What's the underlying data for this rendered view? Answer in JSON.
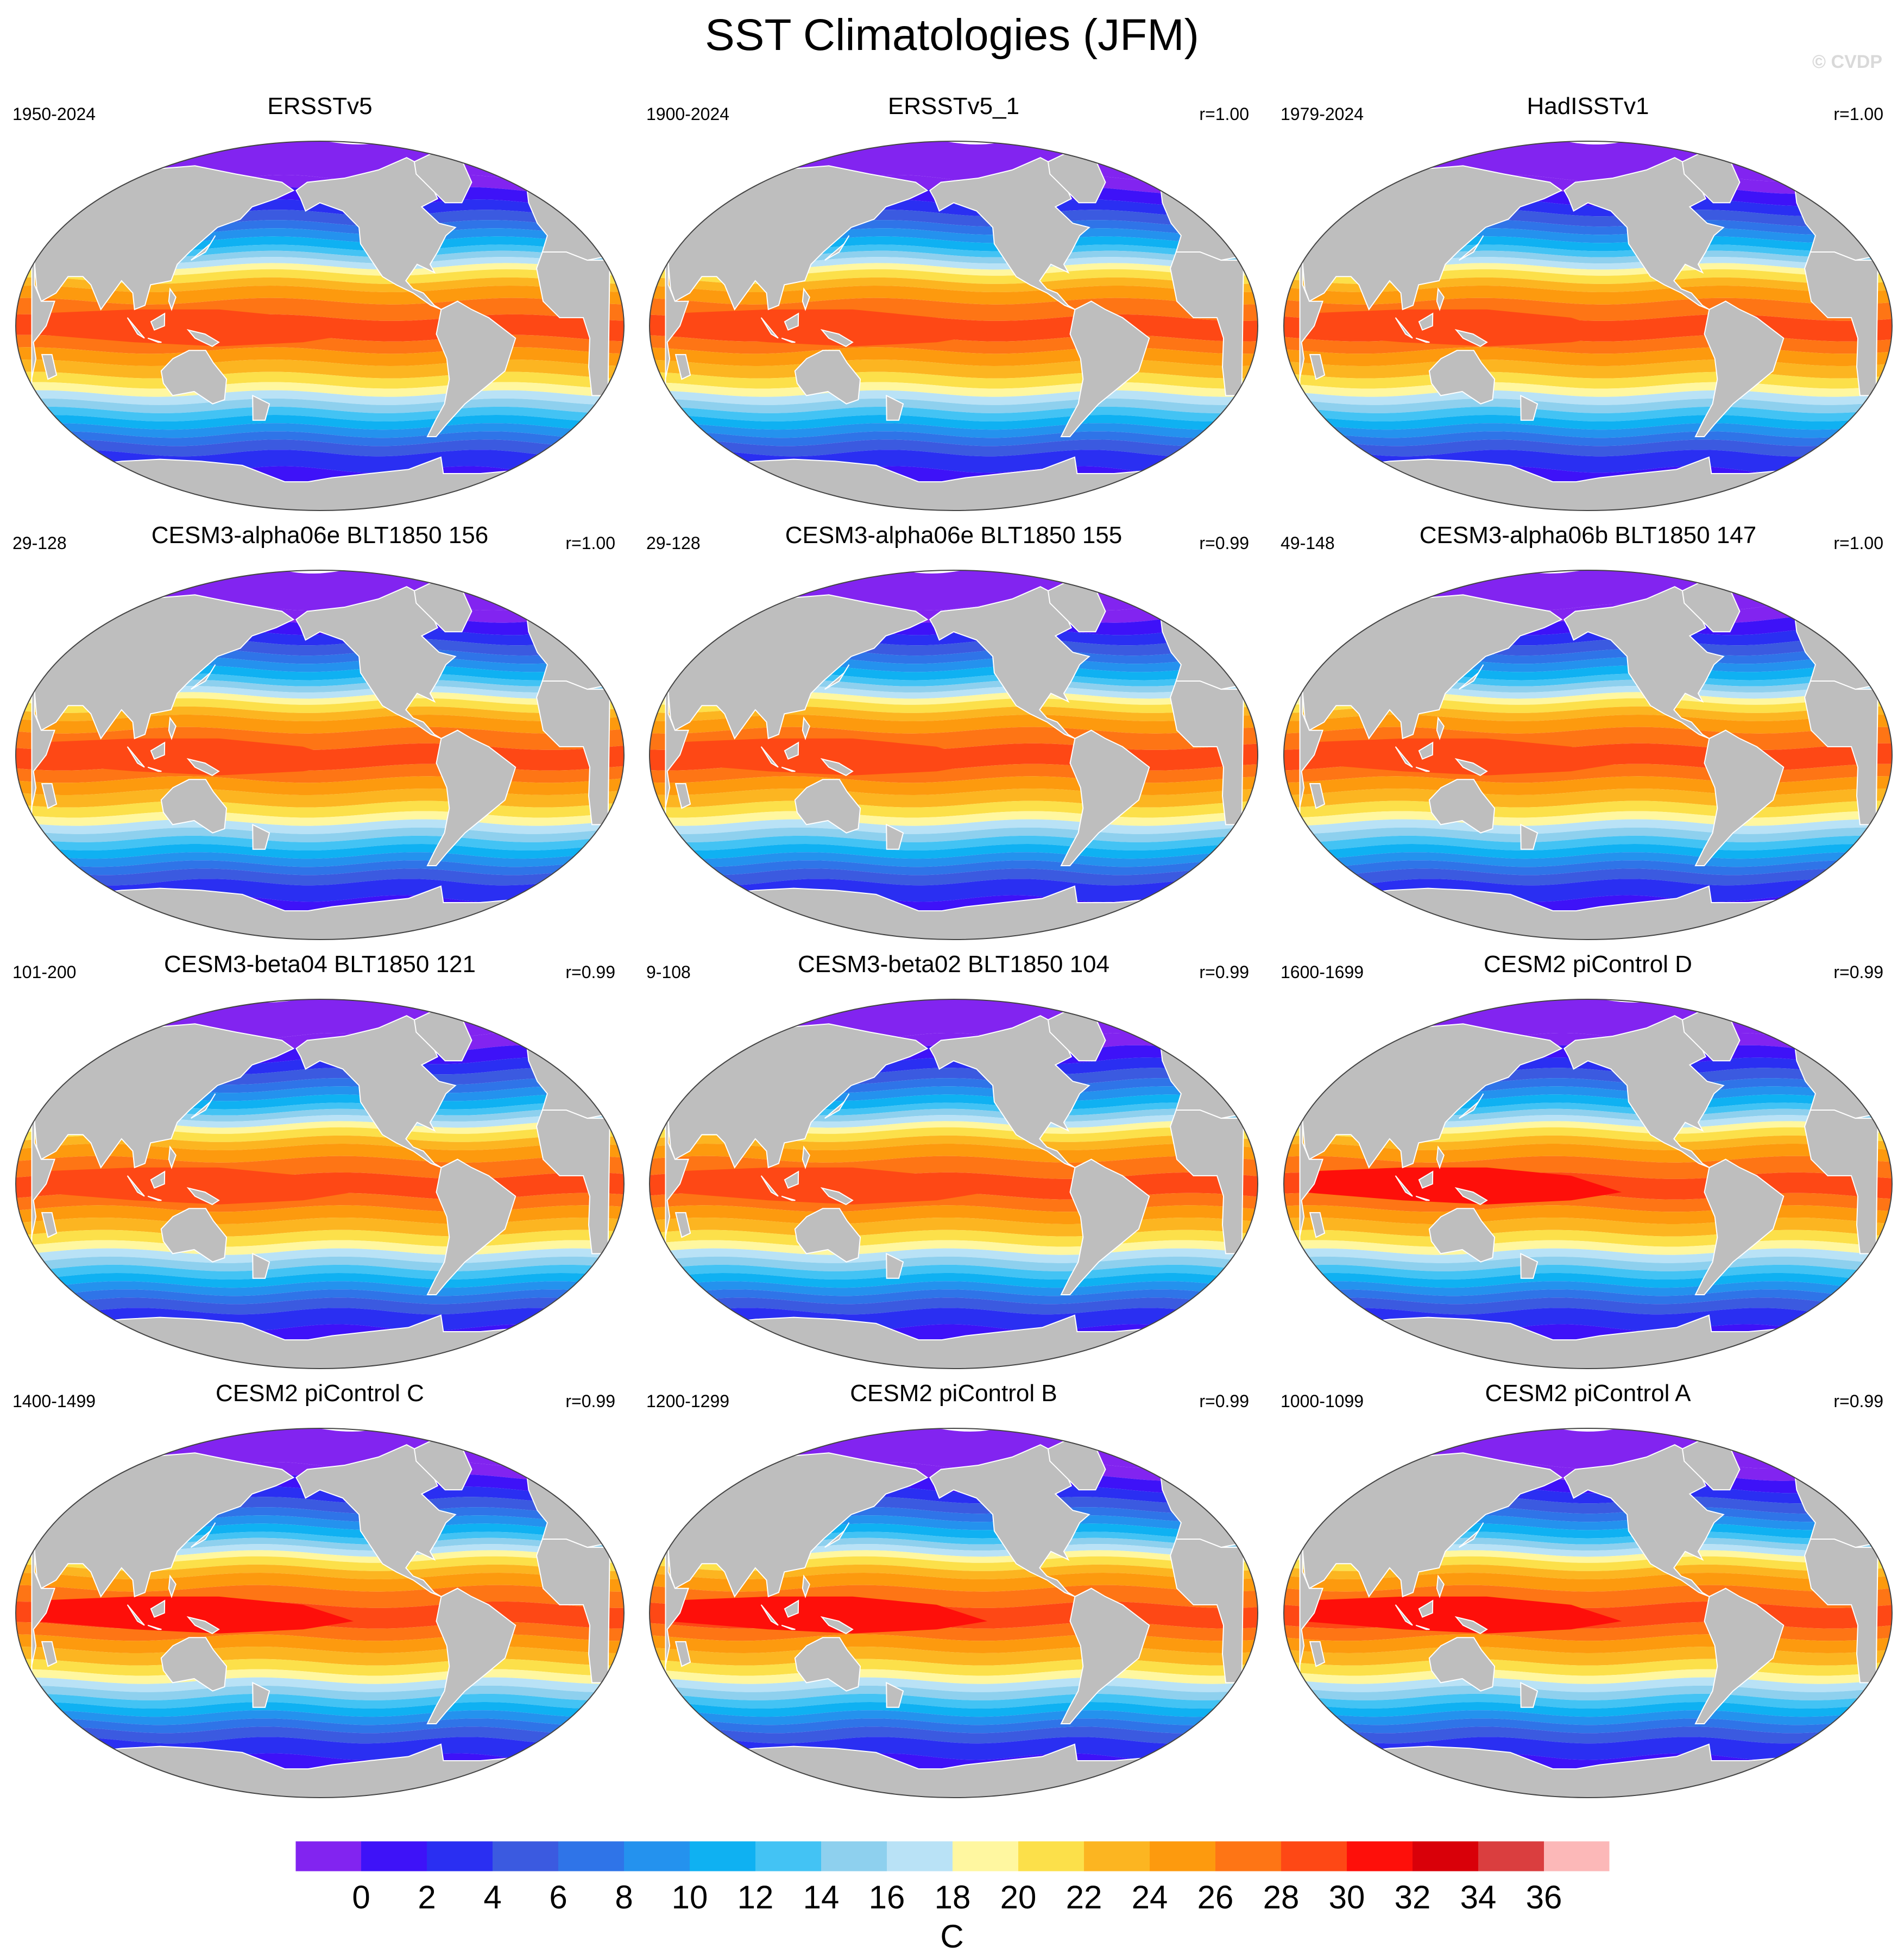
{
  "figure": {
    "title": "SST Climatologies (JFM)",
    "watermark": "© CVDP"
  },
  "panels": [
    {
      "name": "ERSSTv5",
      "period": "1950-2024",
      "corr": ""
    },
    {
      "name": "ERSSTv5_1",
      "period": "1900-2024",
      "corr": "r=1.00"
    },
    {
      "name": "HadISSTv1",
      "period": "1979-2024",
      "corr": "r=1.00"
    },
    {
      "name": "CESM3-alpha06e BLT1850 156",
      "period": "29-128",
      "corr": "r=1.00"
    },
    {
      "name": "CESM3-alpha06e BLT1850 155",
      "period": "29-128",
      "corr": "r=0.99"
    },
    {
      "name": "CESM3-alpha06b BLT1850 147",
      "period": "49-148",
      "corr": "r=1.00"
    },
    {
      "name": "CESM3-beta04 BLT1850 121",
      "period": "101-200",
      "corr": "r=0.99"
    },
    {
      "name": "CESM3-beta02 BLT1850 104",
      "period": "9-108",
      "corr": "r=0.99"
    },
    {
      "name": "CESM2 piControl D",
      "period": "1600-1699",
      "corr": "r=0.99"
    },
    {
      "name": "CESM2 piControl C",
      "period": "1400-1499",
      "corr": "r=0.99"
    },
    {
      "name": "CESM2 piControl B",
      "period": "1200-1299",
      "corr": "r=0.99"
    },
    {
      "name": "CESM2 piControl A",
      "period": "1000-1099",
      "corr": "r=0.99"
    }
  ],
  "colorbar": {
    "unit": "C",
    "tick_labels": [
      "0",
      "2",
      "4",
      "6",
      "8",
      "10",
      "12",
      "14",
      "16",
      "18",
      "20",
      "22",
      "24",
      "26",
      "28",
      "30",
      "32",
      "34",
      "36"
    ],
    "colors": [
      "#8224f0",
      "#3e12f8",
      "#2a2ff2",
      "#3b5ae0",
      "#2f74e8",
      "#2492ee",
      "#0fb1f2",
      "#43c3f4",
      "#8ed0ee",
      "#b9e2f6",
      "#fff7a0",
      "#fce04a",
      "#fcb521",
      "#fd9a0e",
      "#fe7515",
      "#fe4815",
      "#fe0f0a",
      "#d90009",
      "#da3e3f",
      "#fcb8b8"
    ]
  },
  "map_style": {
    "land_color": "#bebebe",
    "outline_color": "#444444"
  }
}
